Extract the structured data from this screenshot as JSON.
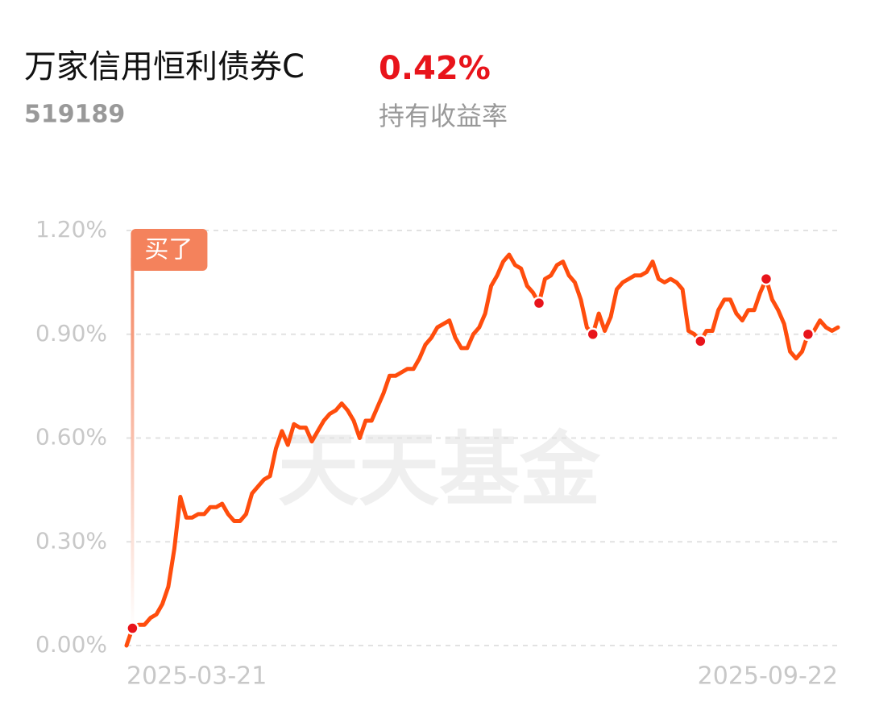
{
  "header": {
    "title": "万家信用恒利债券C",
    "code": "519189",
    "return": "0.42%",
    "return_label": "持有收益率"
  },
  "chart_data": {
    "type": "line",
    "watermark": "天天基金",
    "categories": [
      "2025-03-21",
      null,
      null,
      null,
      null,
      null,
      null,
      null,
      null,
      null,
      null,
      null,
      null,
      null,
      null,
      null,
      null,
      null,
      null,
      null,
      null,
      null,
      null,
      null,
      null,
      null,
      null,
      null,
      null,
      null,
      null,
      null,
      null,
      null,
      null,
      null,
      null,
      null,
      null,
      null,
      null,
      null,
      null,
      null,
      null,
      null,
      null,
      null,
      null,
      null,
      null,
      null,
      null,
      null,
      null,
      null,
      null,
      null,
      null,
      null,
      null,
      null,
      null,
      null,
      null,
      null,
      null,
      null,
      null,
      null,
      null,
      null,
      null,
      null,
      null,
      null,
      null,
      null,
      null,
      null,
      null,
      null,
      null,
      null,
      null,
      null,
      null,
      null,
      null,
      null,
      null,
      null,
      null,
      null,
      null,
      null,
      null,
      null,
      null,
      null,
      null,
      null,
      null,
      null,
      null,
      null,
      null,
      null,
      null,
      null,
      null,
      null,
      null,
      null,
      null,
      null,
      null,
      null,
      null,
      "2025-09-22"
    ],
    "series": [
      {
        "color": "#ff4d0d",
        "values": [
          0.0,
          0.05,
          0.06,
          0.06,
          0.08,
          0.09,
          0.12,
          0.17,
          0.28,
          0.43,
          0.37,
          0.37,
          0.38,
          0.38,
          0.4,
          0.4,
          0.41,
          0.38,
          0.36,
          0.36,
          0.38,
          0.44,
          0.46,
          0.48,
          0.49,
          0.57,
          0.62,
          0.58,
          0.64,
          0.63,
          0.63,
          0.59,
          0.62,
          0.65,
          0.67,
          0.68,
          0.7,
          0.68,
          0.65,
          0.6,
          0.65,
          0.65,
          0.69,
          0.73,
          0.78,
          0.78,
          0.79,
          0.8,
          0.8,
          0.83,
          0.87,
          0.89,
          0.92,
          0.93,
          0.94,
          0.89,
          0.86,
          0.86,
          0.9,
          0.92,
          0.96,
          1.04,
          1.07,
          1.11,
          1.13,
          1.1,
          1.09,
          1.04,
          1.02,
          0.99,
          1.06,
          1.07,
          1.1,
          1.11,
          1.07,
          1.05,
          1.0,
          0.92,
          0.9,
          0.96,
          0.91,
          0.95,
          1.03,
          1.05,
          1.06,
          1.07,
          1.07,
          1.08,
          1.11,
          1.06,
          1.05,
          1.06,
          1.05,
          1.03,
          0.91,
          0.9,
          0.88,
          0.91,
          0.91,
          0.97,
          1.0,
          1.0,
          0.96,
          0.94,
          0.97,
          0.97,
          1.02,
          1.06,
          1.0,
          0.97,
          0.93,
          0.85,
          0.83,
          0.85,
          0.9,
          0.91,
          0.94,
          0.92,
          0.91,
          0.92
        ]
      }
    ],
    "markers": [
      1,
      69,
      78,
      96,
      107,
      114
    ],
    "annotation": {
      "text": "买了",
      "index": 1,
      "color": "#f4825c"
    },
    "ylim": [
      0,
      1.2
    ],
    "yticks": [
      {
        "value": 0,
        "label": "0.00%"
      },
      {
        "value": 0.3,
        "label": "0.30%"
      },
      {
        "value": 0.6,
        "label": "0.60%"
      },
      {
        "value": 0.9,
        "label": "0.90%"
      },
      {
        "value": 1.2,
        "label": "1.20%"
      }
    ],
    "grid": true
  }
}
